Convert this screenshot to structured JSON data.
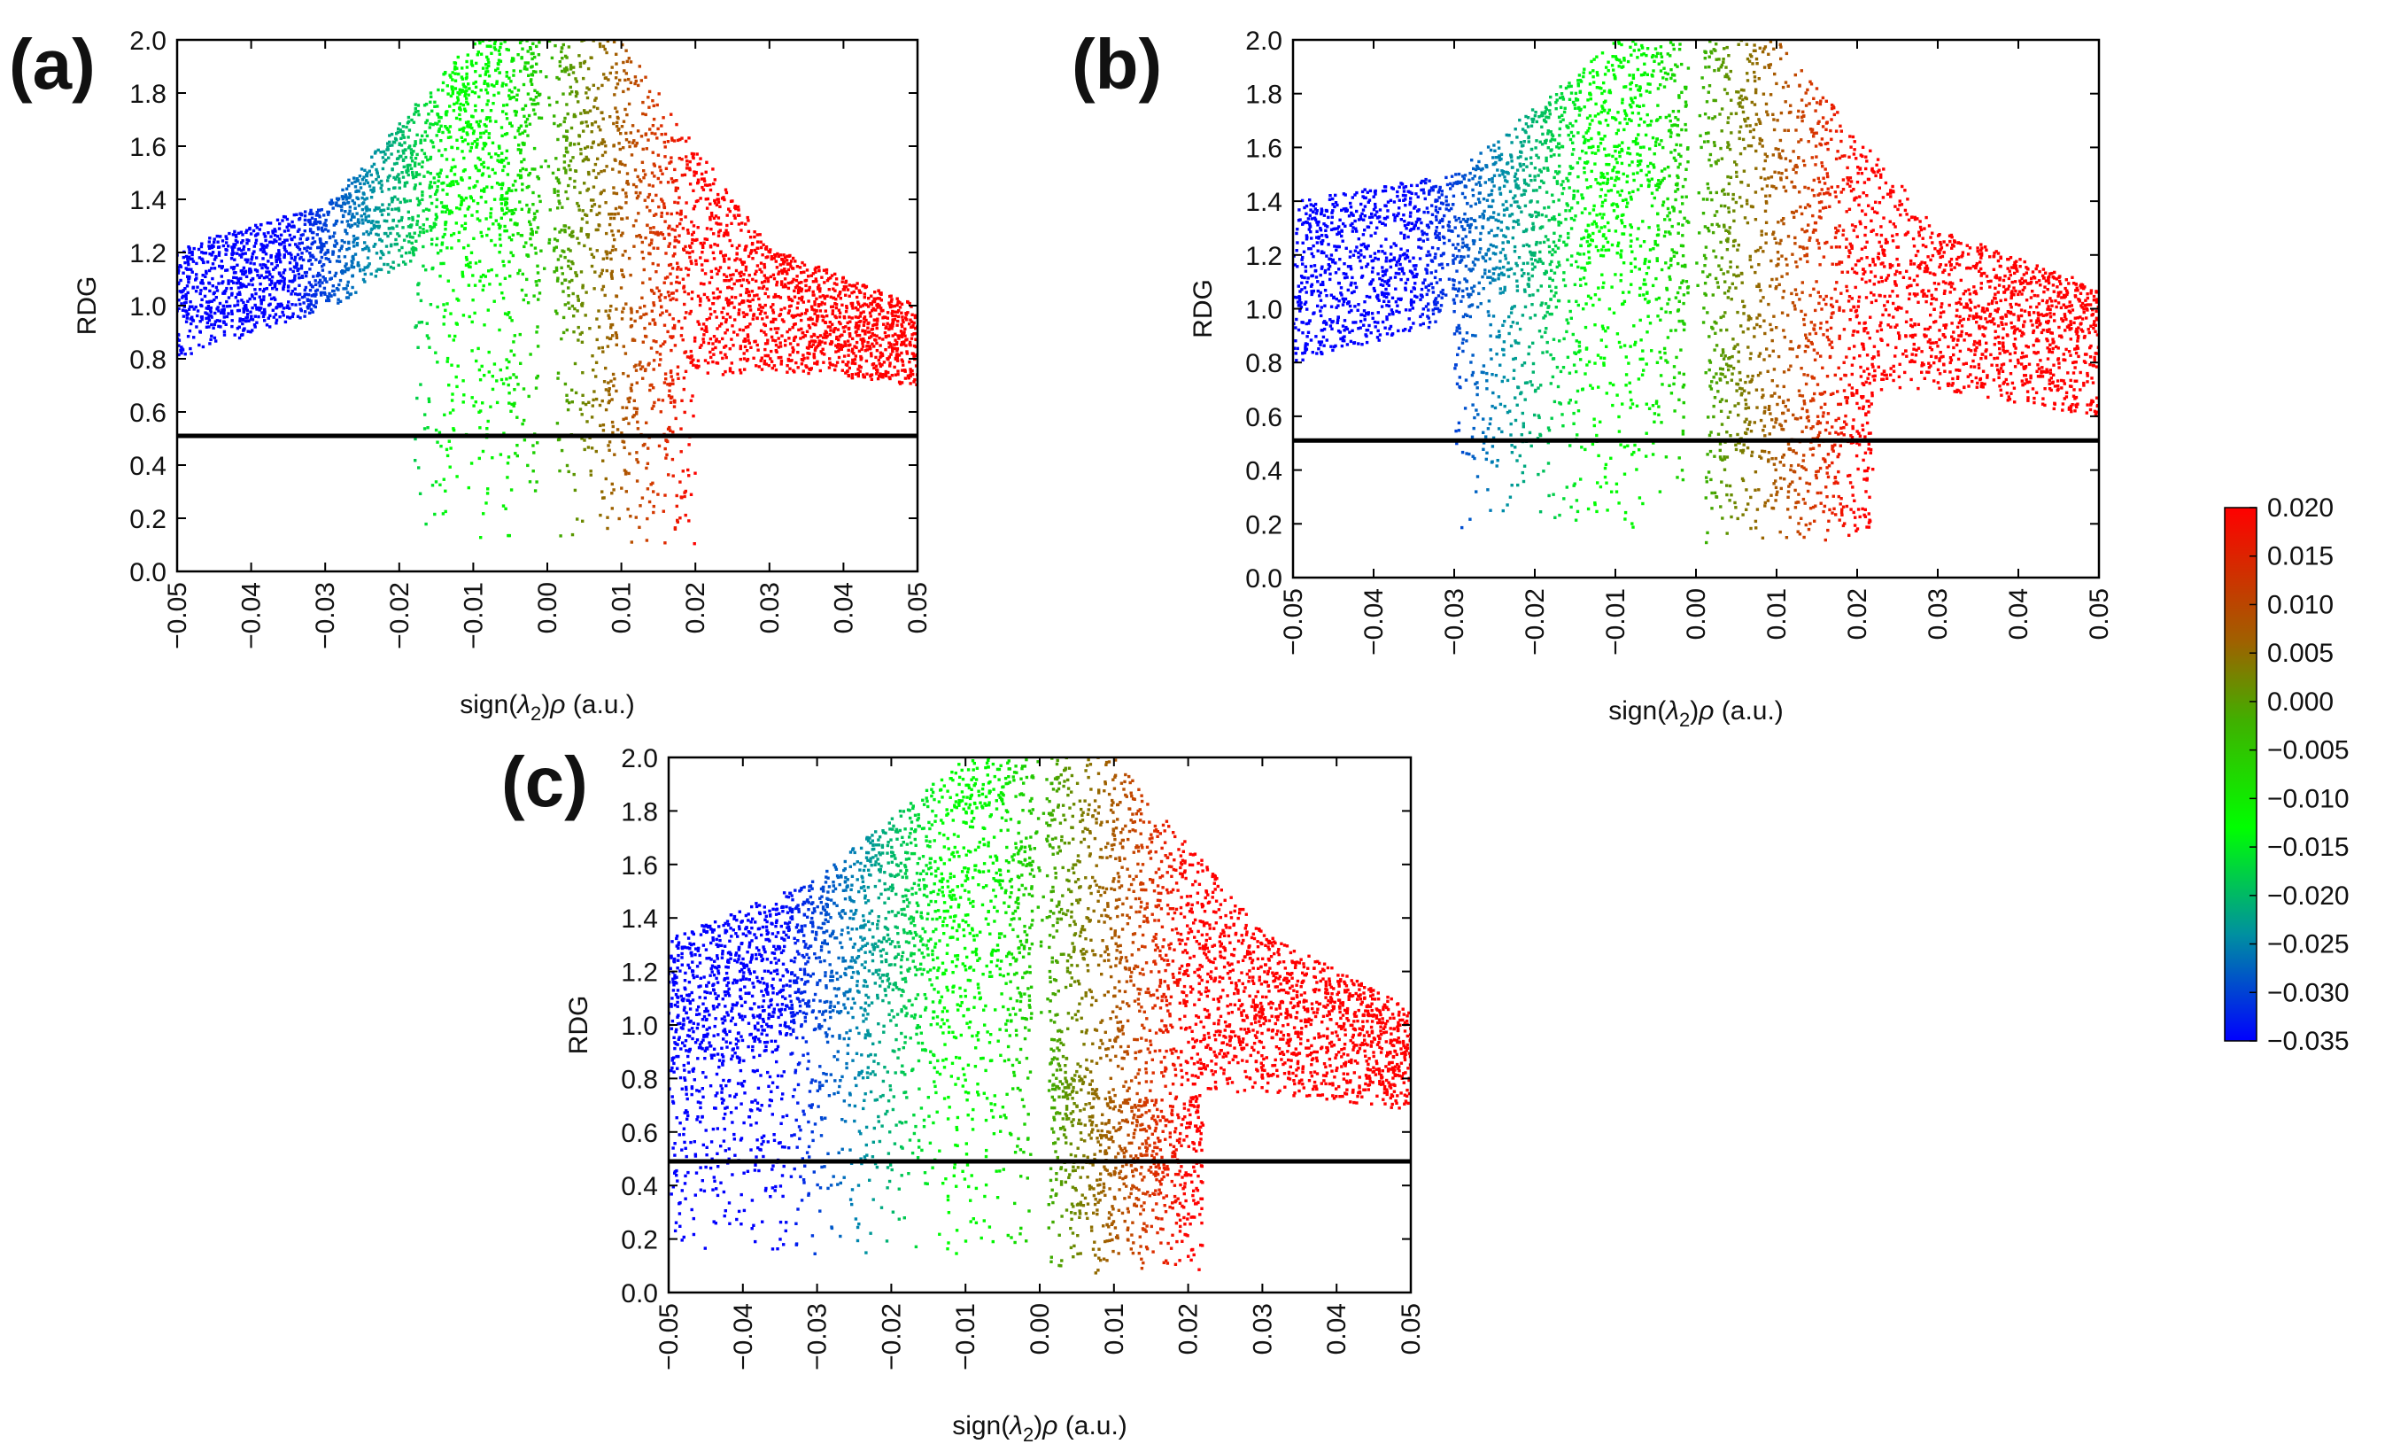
{
  "figure": {
    "y_axis_label": "RDG",
    "x_axis_label_parts": [
      "sign(",
      "λ",
      "2",
      ")",
      "ρ",
      " (a.u.)"
    ]
  },
  "colors": {
    "blue": "#0000ff",
    "green": "#00ff00",
    "red": "#ff0000",
    "axis": "#000000",
    "reference_line": "#000000"
  },
  "chart_data": [
    {
      "type": "scatter",
      "panel": "(a)",
      "title": "",
      "xlabel": "sign(λ2)ρ (a.u.)",
      "ylabel": "RDG",
      "xlim": [
        -0.05,
        0.05
      ],
      "ylim": [
        0.0,
        2.0
      ],
      "x_ticks": [
        "−0.05",
        "−0.04",
        "−0.03",
        "−0.02",
        "−0.01",
        "0.00",
        "0.01",
        "0.02",
        "0.03",
        "0.04",
        "0.05"
      ],
      "y_ticks": [
        "0.0",
        "0.2",
        "0.4",
        "0.6",
        "0.8",
        "1.0",
        "1.2",
        "1.4",
        "1.6",
        "1.8",
        "2.0"
      ],
      "reference_line_y": 0.51,
      "spike_regions": [
        [
          -0.018,
          0.0,
          0.1
        ],
        [
          0.0,
          0.02,
          0.08
        ]
      ],
      "low_rdg_scatter_density": "sparse",
      "envelope": [
        {
          "x": -0.05,
          "rdg_low": 0.8,
          "rdg_high": 1.22
        },
        {
          "x": -0.03,
          "rdg_low": 0.98,
          "rdg_high": 1.38
        },
        {
          "x": -0.01,
          "rdg_low": 1.3,
          "rdg_high": 2.0
        },
        {
          "x": 0.01,
          "rdg_low": 0.72,
          "rdg_high": 2.0
        },
        {
          "x": 0.03,
          "rdg_low": 0.75,
          "rdg_high": 1.22
        },
        {
          "x": 0.05,
          "rdg_low": 0.7,
          "rdg_high": 1.0
        }
      ]
    },
    {
      "type": "scatter",
      "panel": "(b)",
      "title": "",
      "xlabel": "sign(λ2)ρ (a.u.)",
      "ylabel": "RDG",
      "xlim": [
        -0.05,
        0.05
      ],
      "ylim": [
        0.0,
        2.0
      ],
      "x_ticks": [
        "−0.05",
        "−0.04",
        "−0.03",
        "−0.02",
        "−0.01",
        "0.00",
        "0.01",
        "0.02",
        "0.03",
        "0.04",
        "0.05"
      ],
      "y_ticks": [
        "0.0",
        "0.2",
        "0.4",
        "0.6",
        "0.8",
        "1.0",
        "1.2",
        "1.4",
        "1.6",
        "1.8",
        "2.0"
      ],
      "reference_line_y": 0.51,
      "spike_regions": [
        [
          -0.03,
          0.0,
          0.15
        ],
        [
          0.0,
          0.022,
          0.1
        ]
      ],
      "low_rdg_scatter_density": "medium",
      "envelope": [
        {
          "x": -0.05,
          "rdg_low": 0.8,
          "rdg_high": 1.4
        },
        {
          "x": -0.03,
          "rdg_low": 0.95,
          "rdg_high": 1.5
        },
        {
          "x": -0.01,
          "rdg_low": 1.2,
          "rdg_high": 2.0
        },
        {
          "x": 0.01,
          "rdg_low": 0.68,
          "rdg_high": 2.0
        },
        {
          "x": 0.03,
          "rdg_low": 0.7,
          "rdg_high": 1.3
        },
        {
          "x": 0.05,
          "rdg_low": 0.6,
          "rdg_high": 1.08
        }
      ]
    },
    {
      "type": "scatter",
      "panel": "(c)",
      "title": "",
      "xlabel": "sign(λ2)ρ (a.u.)",
      "ylabel": "RDG",
      "xlim": [
        -0.05,
        0.05
      ],
      "ylim": [
        0.0,
        2.0
      ],
      "x_ticks": [
        "−0.05",
        "−0.04",
        "−0.03",
        "−0.02",
        "−0.01",
        "0.00",
        "0.01",
        "0.02",
        "0.03",
        "0.04",
        "0.05"
      ],
      "y_ticks": [
        "0.0",
        "0.2",
        "0.4",
        "0.6",
        "0.8",
        "1.0",
        "1.2",
        "1.4",
        "1.6",
        "1.8",
        "2.0"
      ],
      "reference_line_y": 0.49,
      "spike_regions": [
        [
          -0.05,
          0.0,
          0.12
        ],
        [
          0.0,
          0.022,
          0.05
        ]
      ],
      "low_rdg_scatter_density": "dense",
      "envelope": [
        {
          "x": -0.05,
          "rdg_low": 0.8,
          "rdg_high": 1.32
        },
        {
          "x": -0.03,
          "rdg_low": 0.95,
          "rdg_high": 1.55
        },
        {
          "x": -0.01,
          "rdg_low": 1.15,
          "rdg_high": 2.0
        },
        {
          "x": 0.01,
          "rdg_low": 0.72,
          "rdg_high": 2.0
        },
        {
          "x": 0.03,
          "rdg_low": 0.75,
          "rdg_high": 1.35
        },
        {
          "x": 0.05,
          "rdg_low": 0.68,
          "rdg_high": 1.06
        }
      ]
    }
  ],
  "colorbar": {
    "labels": [
      "0.020",
      "0.015",
      "0.010",
      "0.005",
      "0.000",
      "−0.005",
      "−0.010",
      "−0.015",
      "−0.020",
      "−0.025",
      "−0.030",
      "−0.035"
    ],
    "min": -0.035,
    "max": 0.02
  }
}
